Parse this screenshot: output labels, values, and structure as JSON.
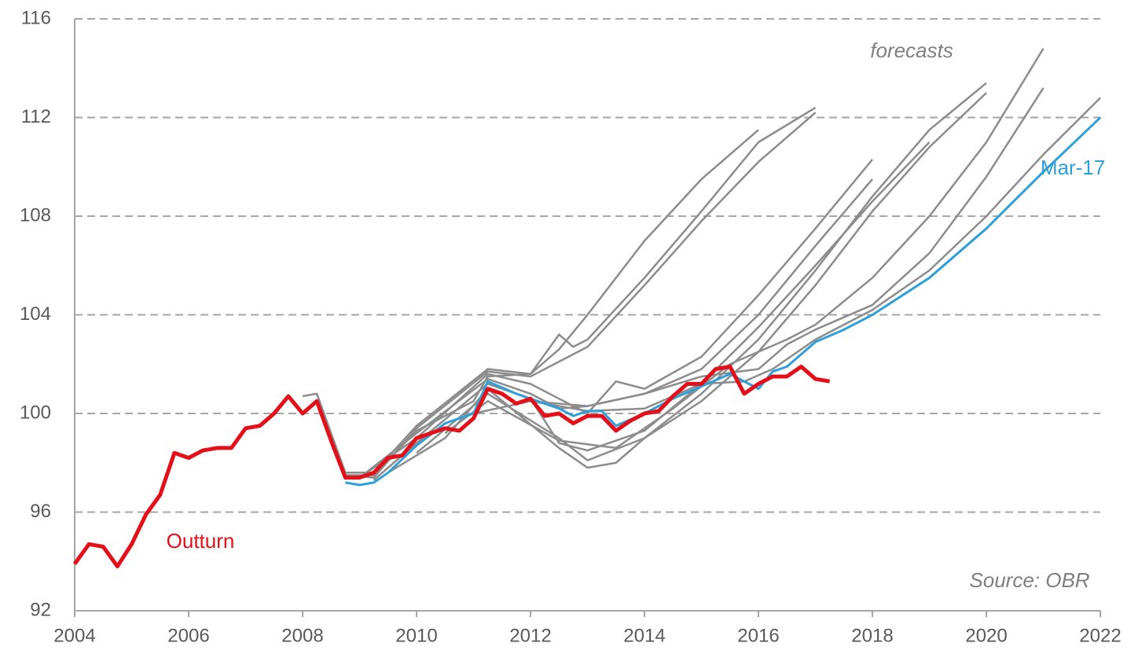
{
  "chart_data": {
    "type": "line",
    "annotations": [
      "forecasts",
      "Source: OBR"
    ],
    "xlim": [
      2004,
      2022
    ],
    "xticks": [
      2004,
      2006,
      2008,
      2010,
      2012,
      2014,
      2016,
      2018,
      2020,
      2022
    ],
    "ylim": [
      92,
      116
    ],
    "yticks": [
      92,
      96,
      100,
      104,
      108,
      112,
      116
    ],
    "grid": true,
    "series": [
      {
        "color": "#8c8c8c",
        "x": [
          2008.0,
          2008.25,
          2008.75,
          2009.25,
          2010,
          2011,
          2011.25,
          2012,
          2012.5,
          2013,
          2014,
          2015,
          2016
        ],
        "values": [
          100.7,
          100.8,
          97.5,
          97.5,
          99.3,
          100.5,
          101.5,
          101.6,
          102.6,
          104.0,
          107.0,
          109.5,
          111.5
        ]
      },
      {
        "color": "#8c8c8c",
        "x": [
          2008.25,
          2008.75,
          2009.25,
          2010,
          2011.25,
          2012,
          2012.5,
          2012.75,
          2013,
          2014,
          2015,
          2016,
          2017
        ],
        "values": [
          100.8,
          97.6,
          97.6,
          99.5,
          101.8,
          101.6,
          103.2,
          102.7,
          103.0,
          105.5,
          108.2,
          111.0,
          112.4
        ]
      },
      {
        "color": "#8c8c8c",
        "x": [
          2008.75,
          2009.25,
          2010,
          2011.25,
          2012,
          2013,
          2014,
          2015,
          2016,
          2017
        ],
        "values": [
          97.5,
          97.4,
          99.4,
          101.7,
          101.5,
          102.7,
          105.2,
          107.8,
          110.2,
          112.2
        ]
      },
      {
        "color": "#8c8c8c",
        "x": [
          2009,
          2010,
          2011.25,
          2012,
          2012.5,
          2013,
          2013.5,
          2014,
          2015,
          2016,
          2017,
          2018
        ],
        "values": [
          97.4,
          99.0,
          101.6,
          101.2,
          100.6,
          100.0,
          101.3,
          101.0,
          102.3,
          104.8,
          107.5,
          110.3
        ]
      },
      {
        "color": "#8c8c8c",
        "x": [
          2009,
          2010,
          2011.25,
          2012,
          2012.5,
          2013,
          2014,
          2015,
          2016,
          2017,
          2018
        ],
        "values": [
          97.4,
          99.2,
          101.4,
          100.8,
          100.2,
          100.3,
          100.8,
          101.8,
          104.0,
          106.8,
          109.5
        ]
      },
      {
        "color": "#8c8c8c",
        "x": [
          2009.25,
          2010,
          2011.25,
          2012,
          2012.5,
          2013,
          2014,
          2015,
          2016,
          2017,
          2018,
          2019
        ],
        "values": [
          97.3,
          98.8,
          101.2,
          100.6,
          98.8,
          98.5,
          99.3,
          101.2,
          103.5,
          106.0,
          108.6,
          111.0
        ]
      },
      {
        "color": "#8c8c8c",
        "x": [
          2009.5,
          2010.5,
          2011.25,
          2012.5,
          2013,
          2013.5,
          2014,
          2015,
          2016,
          2017,
          2018,
          2019,
          2020
        ],
        "values": [
          97.6,
          99.0,
          101.0,
          98.6,
          97.8,
          98.0,
          99.0,
          100.8,
          103.0,
          105.8,
          108.8,
          111.5,
          113.4
        ]
      },
      {
        "color": "#8c8c8c",
        "x": [
          2010,
          2011.25,
          2012.5,
          2013,
          2014,
          2015,
          2016,
          2017,
          2018,
          2019,
          2020
        ],
        "values": [
          98.4,
          100.8,
          99.0,
          98.1,
          99.0,
          100.5,
          102.5,
          105.2,
          108.2,
          110.8,
          113.0
        ]
      },
      {
        "color": "#8c8c8c",
        "x": [
          2010.5,
          2011.25,
          2012.5,
          2013.5,
          2014.5,
          2015.5,
          2016.5,
          2017,
          2018,
          2019,
          2020,
          2021
        ],
        "values": [
          99.2,
          100.5,
          98.9,
          98.6,
          100.2,
          102.0,
          103.0,
          103.6,
          105.5,
          108.0,
          111.0,
          114.8
        ]
      },
      {
        "color": "#8c8c8c",
        "x": [
          2011,
          2012,
          2013,
          2014,
          2015,
          2016,
          2016.5,
          2017,
          2018,
          2019,
          2020,
          2021
        ],
        "values": [
          100.0,
          100.5,
          100.3,
          100.8,
          101.5,
          101.8,
          102.8,
          103.4,
          104.4,
          106.5,
          109.6,
          113.2
        ]
      },
      {
        "color": "#8c8c8c",
        "x": [
          2012,
          2013,
          2014,
          2015,
          2015.75,
          2016.25,
          2017,
          2018,
          2019,
          2020,
          2021,
          2022
        ],
        "values": [
          100.5,
          100.1,
          100.2,
          101.2,
          101.3,
          101.8,
          103.0,
          104.2,
          105.8,
          108.0,
          110.5,
          112.8
        ]
      },
      {
        "name": "Mar-17",
        "color": "#2e9fd8",
        "x": [
          2008.75,
          2009,
          2009.25,
          2009.5,
          2010,
          2010.5,
          2011,
          2011.25,
          2011.75,
          2012,
          2012.5,
          2012.75,
          2013,
          2013.25,
          2013.5,
          2014,
          2014.5,
          2015,
          2015.5,
          2016,
          2016.25,
          2016.5,
          2017,
          2017.5,
          2018,
          2019,
          2020,
          2021,
          2022
        ],
        "values": [
          97.2,
          97.1,
          97.2,
          97.6,
          98.7,
          99.6,
          100.0,
          101.3,
          100.8,
          100.6,
          100.2,
          99.9,
          100.1,
          100.1,
          99.5,
          100.0,
          100.6,
          101.1,
          101.6,
          101.0,
          101.7,
          101.9,
          102.9,
          103.4,
          104.0,
          105.5,
          107.5,
          109.8,
          112.0
        ]
      },
      {
        "name": "Outturn",
        "color": "#e3101a",
        "x": [
          2004,
          2004.25,
          2004.5,
          2004.75,
          2005,
          2005.25,
          2005.5,
          2005.75,
          2006,
          2006.25,
          2006.5,
          2006.75,
          2007,
          2007.25,
          2007.5,
          2007.75,
          2008,
          2008.25,
          2008.5,
          2008.75,
          2009,
          2009.25,
          2009.5,
          2009.75,
          2010,
          2010.25,
          2010.5,
          2010.75,
          2011,
          2011.25,
          2011.5,
          2011.75,
          2012,
          2012.25,
          2012.5,
          2012.75,
          2013,
          2013.25,
          2013.5,
          2013.75,
          2014,
          2014.25,
          2014.5,
          2014.75,
          2015,
          2015.25,
          2015.5,
          2015.75,
          2016,
          2016.25,
          2016.5,
          2016.75,
          2017,
          2017.25
        ],
        "values": [
          93.9,
          94.7,
          94.6,
          93.8,
          94.7,
          95.9,
          96.7,
          98.4,
          98.2,
          98.5,
          98.6,
          98.6,
          99.4,
          99.5,
          100.0,
          100.7,
          100.0,
          100.5,
          98.9,
          97.4,
          97.4,
          97.6,
          98.2,
          98.3,
          99.0,
          99.2,
          99.4,
          99.3,
          99.8,
          101.0,
          100.8,
          100.4,
          100.6,
          99.9,
          100.0,
          99.6,
          99.9,
          99.9,
          99.3,
          99.7,
          100.0,
          100.1,
          100.7,
          101.2,
          101.2,
          101.8,
          101.9,
          100.8,
          101.2,
          101.5,
          101.5,
          101.9,
          101.4,
          101.3
        ]
      }
    ]
  }
}
